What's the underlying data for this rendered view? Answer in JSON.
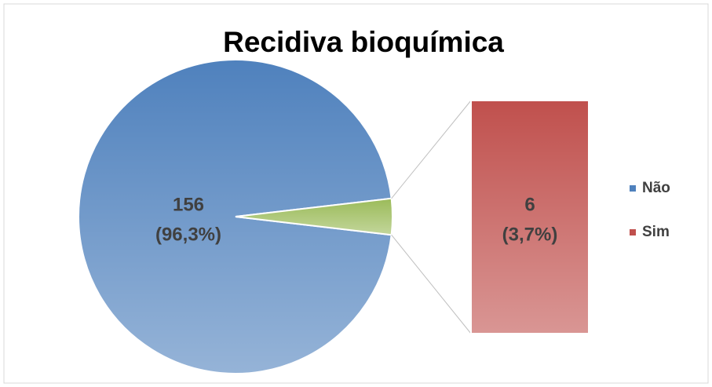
{
  "chart_data": {
    "type": "bar-of-pie",
    "title": "Recidiva bioquímica",
    "categories": [
      "Não",
      "Sim"
    ],
    "values": [
      156,
      6
    ],
    "value_labels": [
      [
        "156",
        "(96,3%)"
      ],
      [
        "6",
        "(3,7%)"
      ]
    ],
    "colors": [
      "#4f81bd",
      "#c0504d"
    ],
    "split_color": "#9bbb59",
    "legend": "right"
  }
}
